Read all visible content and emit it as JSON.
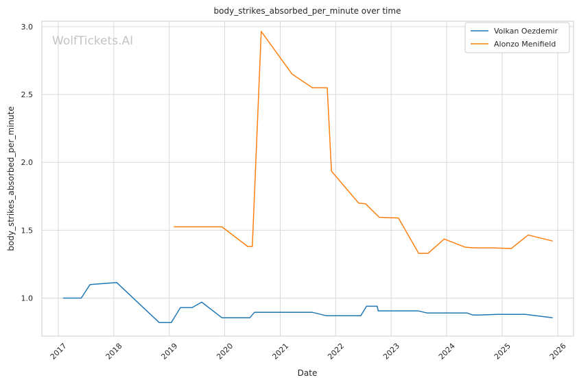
{
  "chart_data": {
    "type": "line",
    "title": "body_strikes_absorbed_per_minute over time",
    "xlabel": "Date",
    "ylabel": "body_strikes_absorbed_per_minute",
    "watermark": "WolfTickets.AI",
    "x_ticks": [
      "2017",
      "2018",
      "2019",
      "2020",
      "2021",
      "2022",
      "2023",
      "2024",
      "2025",
      "2026"
    ],
    "y_ticks": [
      "1.0",
      "1.5",
      "2.0",
      "2.5",
      "3.0"
    ],
    "xlim": [
      "2016-09-15",
      "2026-04-15"
    ],
    "ylim": [
      0.72,
      3.04
    ],
    "grid": true,
    "legend_position": "top-right",
    "series": [
      {
        "name": "Volkan Oezdemir",
        "color": "#1f77b4",
        "points": [
          [
            "2017-02-01",
            1.0
          ],
          [
            "2017-06-01",
            1.0
          ],
          [
            "2017-07-29",
            1.1
          ],
          [
            "2018-01-20",
            1.115
          ],
          [
            "2018-10-27",
            0.82
          ],
          [
            "2019-01-15",
            0.82
          ],
          [
            "2019-03-16",
            0.93
          ],
          [
            "2019-06-01",
            0.93
          ],
          [
            "2019-08-03",
            0.97
          ],
          [
            "2019-12-14",
            0.855
          ],
          [
            "2020-06-15",
            0.855
          ],
          [
            "2020-07-15",
            0.895
          ],
          [
            "2021-08-01",
            0.895
          ],
          [
            "2021-11-01",
            0.87
          ],
          [
            "2022-06-15",
            0.87
          ],
          [
            "2022-07-23",
            0.94
          ],
          [
            "2022-10-01",
            0.94
          ],
          [
            "2022-10-08",
            0.905
          ],
          [
            "2023-07-01",
            0.905
          ],
          [
            "2023-08-26",
            0.89
          ],
          [
            "2024-05-15",
            0.89
          ],
          [
            "2024-06-22",
            0.875
          ],
          [
            "2024-08-01",
            0.875
          ],
          [
            "2024-11-30",
            0.88
          ],
          [
            "2025-06-01",
            0.88
          ],
          [
            "2025-11-29",
            0.855
          ]
        ]
      },
      {
        "name": "Alonzo Menifield",
        "color": "#ff7f0e",
        "points": [
          [
            "2019-02-01",
            1.525
          ],
          [
            "2019-12-14",
            1.525
          ],
          [
            "2020-06-01",
            1.38
          ],
          [
            "2020-07-01",
            1.38
          ],
          [
            "2020-08-29",
            2.965
          ],
          [
            "2021-03-20",
            2.65
          ],
          [
            "2021-08-01",
            2.55
          ],
          [
            "2021-11-06",
            2.55
          ],
          [
            "2021-12-04",
            1.935
          ],
          [
            "2022-06-01",
            1.7
          ],
          [
            "2022-07-16",
            1.695
          ],
          [
            "2022-10-15",
            1.595
          ],
          [
            "2023-02-18",
            1.59
          ],
          [
            "2023-07-01",
            1.33
          ],
          [
            "2023-09-01",
            1.33
          ],
          [
            "2023-12-16",
            1.435
          ],
          [
            "2024-05-01",
            1.375
          ],
          [
            "2024-07-01",
            1.37
          ],
          [
            "2024-11-01",
            1.37
          ],
          [
            "2025-03-01",
            1.365
          ],
          [
            "2025-06-21",
            1.465
          ],
          [
            "2025-11-29",
            1.42
          ]
        ]
      }
    ]
  }
}
